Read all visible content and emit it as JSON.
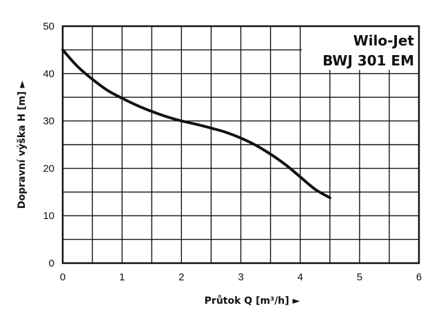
{
  "chart_data": {
    "type": "line",
    "title_lines": [
      "Wilo-Jet",
      "BWJ 301 EM"
    ],
    "xlabel": "Průtok Q [m³/h] ►",
    "ylabel": "Dopravní výška H [m] ►",
    "xlim": [
      0,
      6
    ],
    "ylim": [
      0,
      50
    ],
    "x_ticks": [
      0,
      1,
      2,
      3,
      4,
      5,
      6
    ],
    "y_ticks": [
      0,
      10,
      20,
      30,
      40,
      50
    ],
    "grid": true,
    "grid_x_step": 0.5,
    "grid_y_step": 5,
    "series": [
      {
        "color": "#111111",
        "x": [
          0,
          0.25,
          0.5,
          0.75,
          1.0,
          1.25,
          1.5,
          1.75,
          2.0,
          2.25,
          2.5,
          2.75,
          3.0,
          3.25,
          3.5,
          3.75,
          4.0,
          4.25,
          4.5
        ],
        "y": [
          45,
          41.5,
          38.8,
          36.5,
          34.8,
          33.3,
          32,
          30.9,
          30,
          29.3,
          28.5,
          27.6,
          26.4,
          24.9,
          23.0,
          20.8,
          18.2,
          15.6,
          13.8
        ]
      }
    ]
  }
}
